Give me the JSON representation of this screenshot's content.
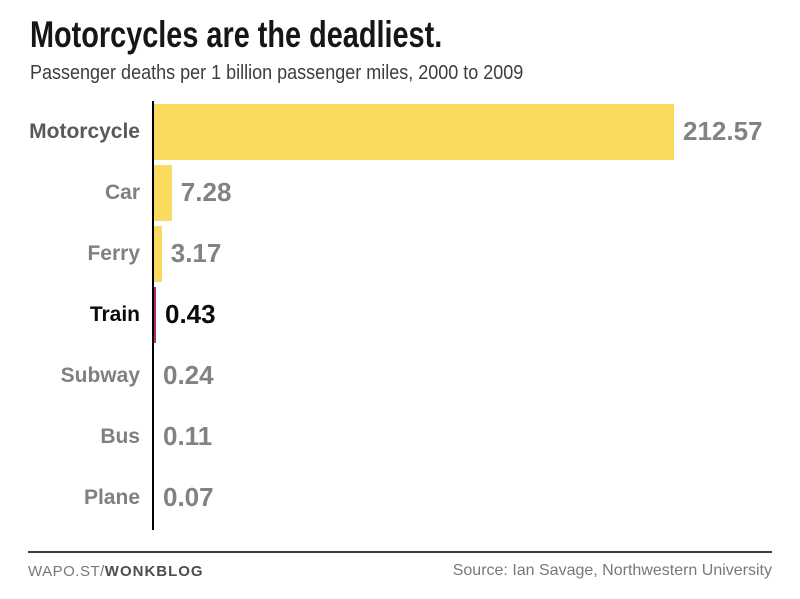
{
  "title": "Motorcycles are the deadliest.",
  "subtitle": "Passenger deaths per 1 billion passenger miles, 2000 to 2009",
  "footer": {
    "brand_prefix": "WAPO.ST/",
    "brand_bold": "WONKBLOG",
    "source": "Source: Ian Savage, Northwestern University"
  },
  "colors": {
    "bar_yellow": "#FBDB5F",
    "bar_highlight": "#A8326E",
    "label_dark": "#58595B",
    "label_mid": "#7E8083",
    "text_black": "#0a0a0a",
    "value_gray": "#808285",
    "axis_black": "#000000"
  },
  "chart_data": {
    "type": "bar",
    "orientation": "horizontal",
    "title": "Motorcycles are the deadliest.",
    "subtitle": "Passenger deaths per 1 billion passenger miles, 2000 to 2009",
    "xlabel": "",
    "ylabel": "",
    "xlim": [
      0,
      220
    ],
    "grid": false,
    "legend": false,
    "highlighted_category": "Train",
    "categories": [
      "Motorcycle",
      "Car",
      "Ferry",
      "Train",
      "Subway",
      "Bus",
      "Plane"
    ],
    "values": [
      212.57,
      7.28,
      3.17,
      0.43,
      0.24,
      0.11,
      0.07
    ],
    "rows": [
      {
        "label": "Motorcycle",
        "value": 212.57,
        "display": "212.57",
        "label_shade": "dark",
        "value_shade": "gray",
        "bar": "yellow"
      },
      {
        "label": "Car",
        "value": 7.28,
        "display": "7.28",
        "label_shade": "mid",
        "value_shade": "gray",
        "bar": "yellow"
      },
      {
        "label": "Ferry",
        "value": 3.17,
        "display": "3.17",
        "label_shade": "mid",
        "value_shade": "gray",
        "bar": "yellow"
      },
      {
        "label": "Train",
        "value": 0.43,
        "display": "0.43",
        "label_shade": "black",
        "value_shade": "black",
        "bar": "highlight"
      },
      {
        "label": "Subway",
        "value": 0.24,
        "display": "0.24",
        "label_shade": "mid",
        "value_shade": "gray",
        "bar": "yellow"
      },
      {
        "label": "Bus",
        "value": 0.11,
        "display": "0.11",
        "label_shade": "mid",
        "value_shade": "gray",
        "bar": "yellow"
      },
      {
        "label": "Plane",
        "value": 0.07,
        "display": "0.07",
        "label_shade": "mid",
        "value_shade": "gray",
        "bar": "yellow"
      }
    ]
  }
}
